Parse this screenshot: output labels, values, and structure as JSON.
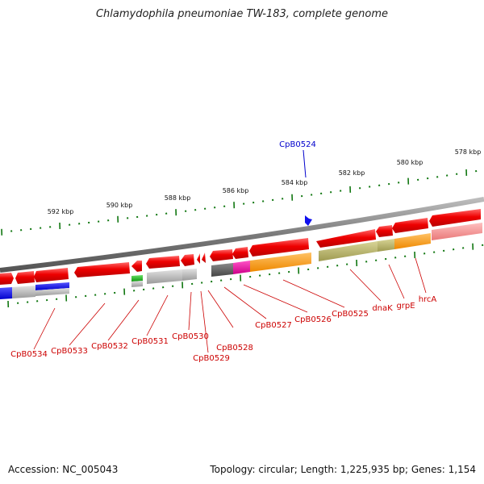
{
  "title": "Chlamydophila pneumoniae TW-183, complete genome",
  "focus_gene": "CpB0524",
  "scale": [
    {
      "label": "578 kbp"
    },
    {
      "label": "580 kbp"
    },
    {
      "label": "582 kbp"
    },
    {
      "label": "584 kbp"
    },
    {
      "label": "586 kbp"
    },
    {
      "label": "588 kbp"
    },
    {
      "label": "590 kbp"
    },
    {
      "label": "592 kbp"
    }
  ],
  "gene_labels": [
    {
      "label": "CpB0534"
    },
    {
      "label": "CpB0533"
    },
    {
      "label": "CpB0532"
    },
    {
      "label": "CpB0531"
    },
    {
      "label": "CpB0530"
    },
    {
      "label": "CpB0529"
    },
    {
      "label": "CpB0528"
    },
    {
      "label": "CpB0527"
    },
    {
      "label": "CpB0526"
    },
    {
      "label": "CpB0525"
    },
    {
      "label": "dnaK"
    },
    {
      "label": "grpE"
    },
    {
      "label": "hrcA"
    }
  ],
  "colors": {
    "gene": "#ee0000",
    "scale_tick": "#117711",
    "backbone": "#888888",
    "label": "#cc0000",
    "focus": "#0000cc"
  },
  "footer": {
    "accession": "Accession: NC_005043",
    "topology": "Topology: circular; Length: 1,225,935 bp; Genes: 1,154"
  }
}
